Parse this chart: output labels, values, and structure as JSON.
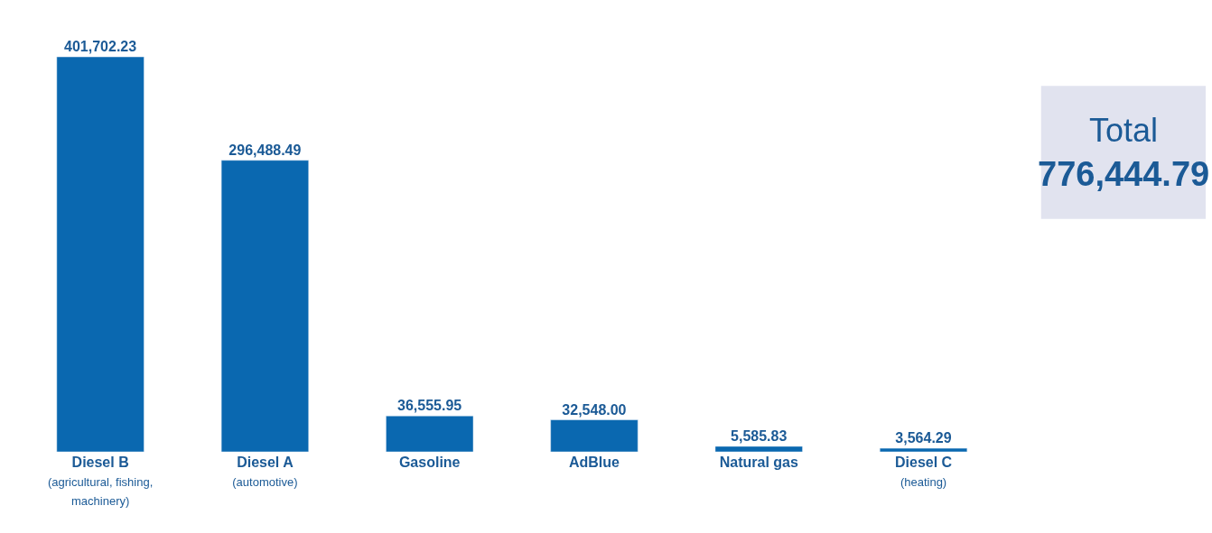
{
  "chart_data": {
    "type": "bar",
    "categories": [
      "Diesel B\n(agricultural, fishing,\nmachinery)",
      "Diesel A\n(automotive)",
      "Gasoline",
      "AdBlue",
      "Natural gas",
      "Diesel C\n(heating)"
    ],
    "values": [
      401702.23,
      296488.49,
      36555.95,
      32548.0,
      5585.83,
      3564.29
    ],
    "value_labels": [
      "401,702.23",
      "296,488.49",
      "36,555.95",
      "32,548.00",
      "5,585.83",
      "3,564.29"
    ],
    "color": "#0a68b0",
    "tick_labels": "x",
    "legend": false,
    "annotations": [
      "Total",
      "776,444.79"
    ]
  }
}
